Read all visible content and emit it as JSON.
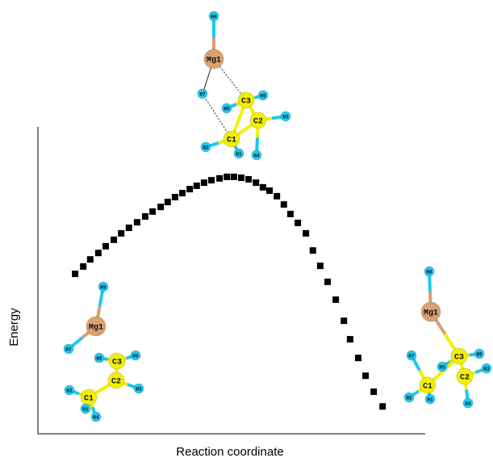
{
  "chart_data": {
    "type": "scatter",
    "x_label": "Reaction coordinate",
    "y_label": "Energy",
    "xlim": [
      0,
      100
    ],
    "ylim": [
      0,
      100
    ],
    "color": "#000000",
    "marker": "square",
    "x": [
      9.6,
      11.7,
      13.5,
      15.6,
      17.5,
      19.6,
      21.5,
      23.5,
      25.6,
      27.7,
      29.6,
      31.7,
      33.5,
      35.4,
      37.3,
      39.2,
      41.0,
      42.9,
      44.8,
      46.9,
      48.8,
      50.6,
      52.5,
      54.4,
      56.3,
      58.1,
      59.8,
      61.7,
      63.5,
      65.2,
      67.1,
      69.2,
      71.0,
      72.9,
      74.8,
      76.9,
      79.0,
      80.6,
      82.7,
      84.6,
      86.7,
      89.0
    ],
    "values": [
      52.1,
      54.5,
      56.8,
      58.9,
      61.1,
      63.2,
      65.3,
      67.1,
      68.9,
      70.8,
      72.4,
      73.9,
      75.5,
      77.1,
      78.4,
      79.7,
      80.8,
      81.8,
      82.6,
      83.2,
      83.7,
      83.7,
      83.4,
      82.9,
      81.8,
      80.3,
      79.2,
      77.4,
      74.7,
      71.6,
      68.7,
      65.3,
      59.7,
      54.7,
      49.5,
      43.7,
      36.8,
      30.8,
      24.7,
      18.9,
      13.7,
      8.9
    ],
    "molecules": [
      [
        "H8",
        "Mg1",
        "H7",
        "H5",
        "C3",
        "H6",
        "C2",
        "H3",
        "H2",
        "C1",
        "H1",
        "H4"
      ],
      [
        "H8",
        "Mg1",
        "H7",
        "H5",
        "C3",
        "H6",
        "C2",
        "H3",
        "C1",
        "H2",
        "H1",
        "H4"
      ],
      [
        "H8",
        "Mg1",
        "H7",
        "C3",
        "H5",
        "H6",
        "C1",
        "C2",
        "H3",
        "H2",
        "H1",
        "H4"
      ]
    ]
  }
}
